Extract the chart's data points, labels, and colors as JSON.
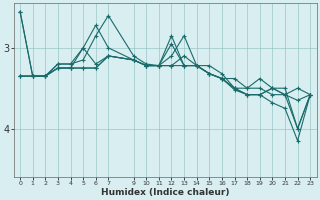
{
  "xlabel": "Humidex (Indice chaleur)",
  "background_color": "#d8eef0",
  "grid_color": "#8bbcbe",
  "line_color": "#1a6b6b",
  "xlim": [
    -0.5,
    23.5
  ],
  "ylim": [
    4.6,
    2.45
  ],
  "yticks": [
    3,
    4
  ],
  "xticks": [
    0,
    1,
    2,
    3,
    4,
    5,
    6,
    7,
    9,
    10,
    11,
    12,
    13,
    14,
    15,
    16,
    17,
    18,
    19,
    20,
    21,
    22,
    23
  ],
  "lines": [
    {
      "x": [
        0,
        1,
        2,
        3,
        4,
        5,
        6,
        7,
        9,
        10,
        11,
        12,
        13,
        14,
        15,
        16,
        17,
        18,
        19,
        20,
        21,
        22,
        23
      ],
      "y": [
        2.55,
        3.35,
        3.35,
        3.2,
        3.2,
        3.15,
        2.85,
        2.6,
        3.1,
        3.2,
        3.22,
        2.95,
        3.22,
        3.22,
        3.22,
        3.32,
        3.5,
        3.58,
        3.58,
        3.5,
        3.5,
        4.0,
        3.58
      ]
    },
    {
      "x": [
        0,
        1,
        2,
        3,
        4,
        5,
        6,
        7,
        9,
        10,
        11,
        12,
        13,
        14,
        15,
        16,
        17,
        18,
        19,
        20,
        21,
        22,
        23
      ],
      "y": [
        3.35,
        3.35,
        3.35,
        3.25,
        3.25,
        3.25,
        3.25,
        3.1,
        3.15,
        3.22,
        3.22,
        3.22,
        3.22,
        3.22,
        3.32,
        3.38,
        3.38,
        3.5,
        3.5,
        3.58,
        3.58,
        3.65,
        3.58
      ]
    },
    {
      "x": [
        0,
        1,
        2,
        3,
        4,
        5,
        6,
        7,
        9,
        10,
        11,
        12,
        13,
        14,
        15,
        16,
        17,
        18,
        19,
        20,
        21,
        22,
        23
      ],
      "y": [
        2.55,
        3.35,
        3.35,
        3.2,
        3.2,
        3.0,
        2.72,
        3.0,
        3.15,
        3.22,
        3.22,
        2.85,
        3.22,
        3.22,
        3.32,
        3.38,
        3.52,
        3.58,
        3.58,
        3.5,
        3.58,
        4.0,
        3.58
      ]
    },
    {
      "x": [
        0,
        1,
        2,
        3,
        4,
        5,
        6,
        7,
        9,
        10,
        11,
        12,
        13,
        14,
        15,
        16,
        17,
        18,
        19,
        20,
        21,
        22,
        23
      ],
      "y": [
        3.35,
        3.35,
        3.35,
        3.25,
        3.25,
        3.0,
        3.2,
        3.1,
        3.15,
        3.22,
        3.22,
        3.22,
        3.1,
        3.22,
        3.32,
        3.38,
        3.5,
        3.5,
        3.38,
        3.5,
        3.58,
        3.5,
        3.58
      ]
    },
    {
      "x": [
        0,
        1,
        2,
        3,
        4,
        5,
        6,
        7,
        9,
        10,
        11,
        12,
        13,
        14,
        15,
        16,
        17,
        18,
        19,
        20,
        21,
        22,
        23
      ],
      "y": [
        3.35,
        3.35,
        3.35,
        3.25,
        3.25,
        3.25,
        3.25,
        3.1,
        3.15,
        3.22,
        3.22,
        3.1,
        2.85,
        3.22,
        3.32,
        3.38,
        3.5,
        3.58,
        3.58,
        3.68,
        3.75,
        4.15,
        3.58
      ]
    }
  ]
}
